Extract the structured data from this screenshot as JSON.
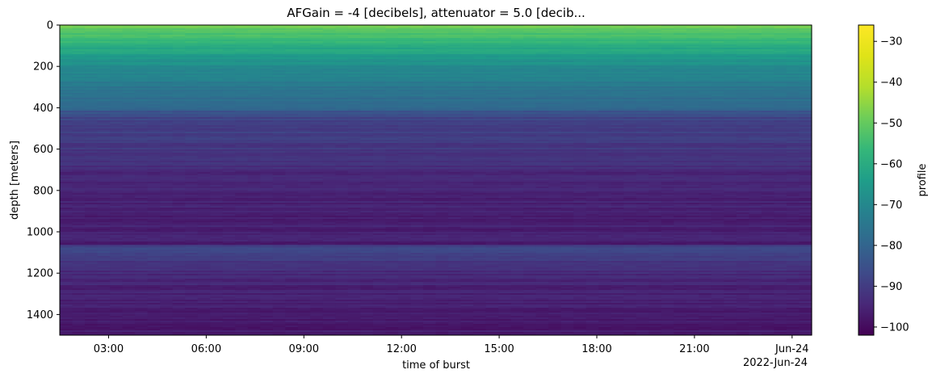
{
  "chart_data": {
    "type": "heatmap",
    "title": "AFGain = -4 [decibels], attenuator = 5.0 [decib...",
    "xlabel": "time of burst",
    "ylabel": "depth [meters]",
    "x_ticks": [
      "03:00",
      "06:00",
      "09:00",
      "12:00",
      "15:00",
      "18:00",
      "21:00",
      "Jun-24"
    ],
    "x_offset_label": "2022-Jun-24",
    "x_range_hours": [
      1.5,
      24.6
    ],
    "x_tick_hours": [
      3,
      6,
      9,
      12,
      15,
      18,
      21,
      24
    ],
    "y_ticks": [
      "0",
      "200",
      "400",
      "600",
      "800",
      "1000",
      "1200",
      "1400"
    ],
    "y_tick_values": [
      0,
      200,
      400,
      600,
      800,
      1000,
      1200,
      1400
    ],
    "ylim": [
      1500,
      0
    ],
    "y_inverted": true,
    "colorbar": {
      "label": "profile",
      "ticks": [
        "−30",
        "−40",
        "−50",
        "−60",
        "−70",
        "−80",
        "−90",
        "−100"
      ],
      "tick_values": [
        -30,
        -40,
        -50,
        -60,
        -70,
        -80,
        -90,
        -100
      ],
      "range": [
        -102,
        -26
      ],
      "colormap": "viridis"
    },
    "depth_profile": {
      "depth": [
        0,
        10,
        30,
        60,
        100,
        150,
        200,
        250,
        300,
        350,
        400,
        420,
        450,
        500,
        550,
        600,
        650,
        700,
        800,
        900,
        1000,
        1060,
        1070,
        1100,
        1130,
        1150,
        1200,
        1300,
        1400,
        1500
      ],
      "value": [
        -45,
        -48,
        -52,
        -55,
        -59,
        -64,
        -69,
        -72,
        -75,
        -77,
        -78,
        -84,
        -88,
        -89,
        -90,
        -91,
        -92,
        -94,
        -95,
        -96,
        -96,
        -96,
        -87,
        -88,
        -90,
        -92,
        -94,
        -96,
        -97,
        -97
      ]
    }
  }
}
